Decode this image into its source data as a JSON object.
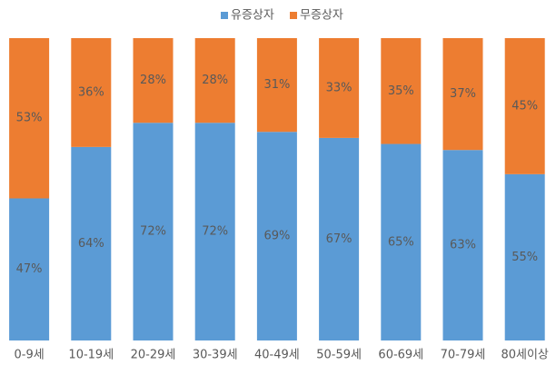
{
  "chart_data": {
    "type": "bar",
    "stacked": true,
    "categories": [
      "0-9세",
      "10-19세",
      "20-29세",
      "30-39세",
      "40-49세",
      "50-59세",
      "60-69세",
      "70-79세",
      "80세이상"
    ],
    "series": [
      {
        "name": "유증상자",
        "color": "#5b9bd5",
        "values": [
          47,
          64,
          72,
          72,
          69,
          67,
          65,
          63,
          55
        ],
        "value_labels": [
          "47%",
          "64%",
          "72%",
          "72%",
          "69%",
          "67%",
          "65%",
          "63%",
          "55%"
        ]
      },
      {
        "name": "무증상자",
        "color": "#ed7d31",
        "values": [
          53,
          36,
          28,
          28,
          31,
          33,
          35,
          37,
          45
        ],
        "value_labels": [
          "53%",
          "36%",
          "28%",
          "28%",
          "31%",
          "33%",
          "35%",
          "37%",
          "45%"
        ]
      }
    ],
    "ylim": [
      0,
      100
    ],
    "legend": "top"
  }
}
